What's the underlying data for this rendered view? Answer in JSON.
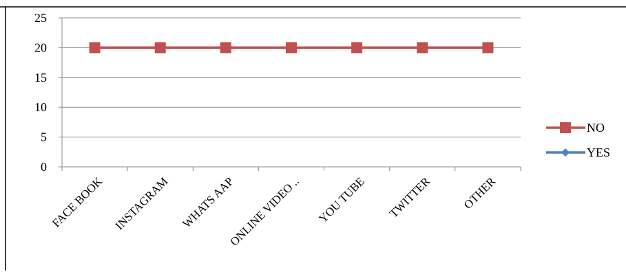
{
  "chart_data": {
    "type": "line",
    "categories": [
      "FACE BOOK",
      "INSTAGRAM",
      "WHATS AAP",
      "ONLINE VIDEO ..",
      "YOU TUBE",
      "TWITTER",
      "OTHER"
    ],
    "ylim": [
      0,
      25
    ],
    "yticks": [
      0,
      5,
      10,
      15,
      20,
      25
    ],
    "grid": true,
    "legend_position": "right",
    "series": [
      {
        "name": "NO",
        "values": [
          20,
          20,
          20,
          20,
          20,
          20,
          20
        ],
        "color": "#C0504D",
        "marker": "square"
      },
      {
        "name": "YES",
        "values": [
          20,
          20,
          20,
          20,
          20,
          20,
          20
        ],
        "color": "#4F81BD",
        "marker": "diamond"
      }
    ]
  }
}
